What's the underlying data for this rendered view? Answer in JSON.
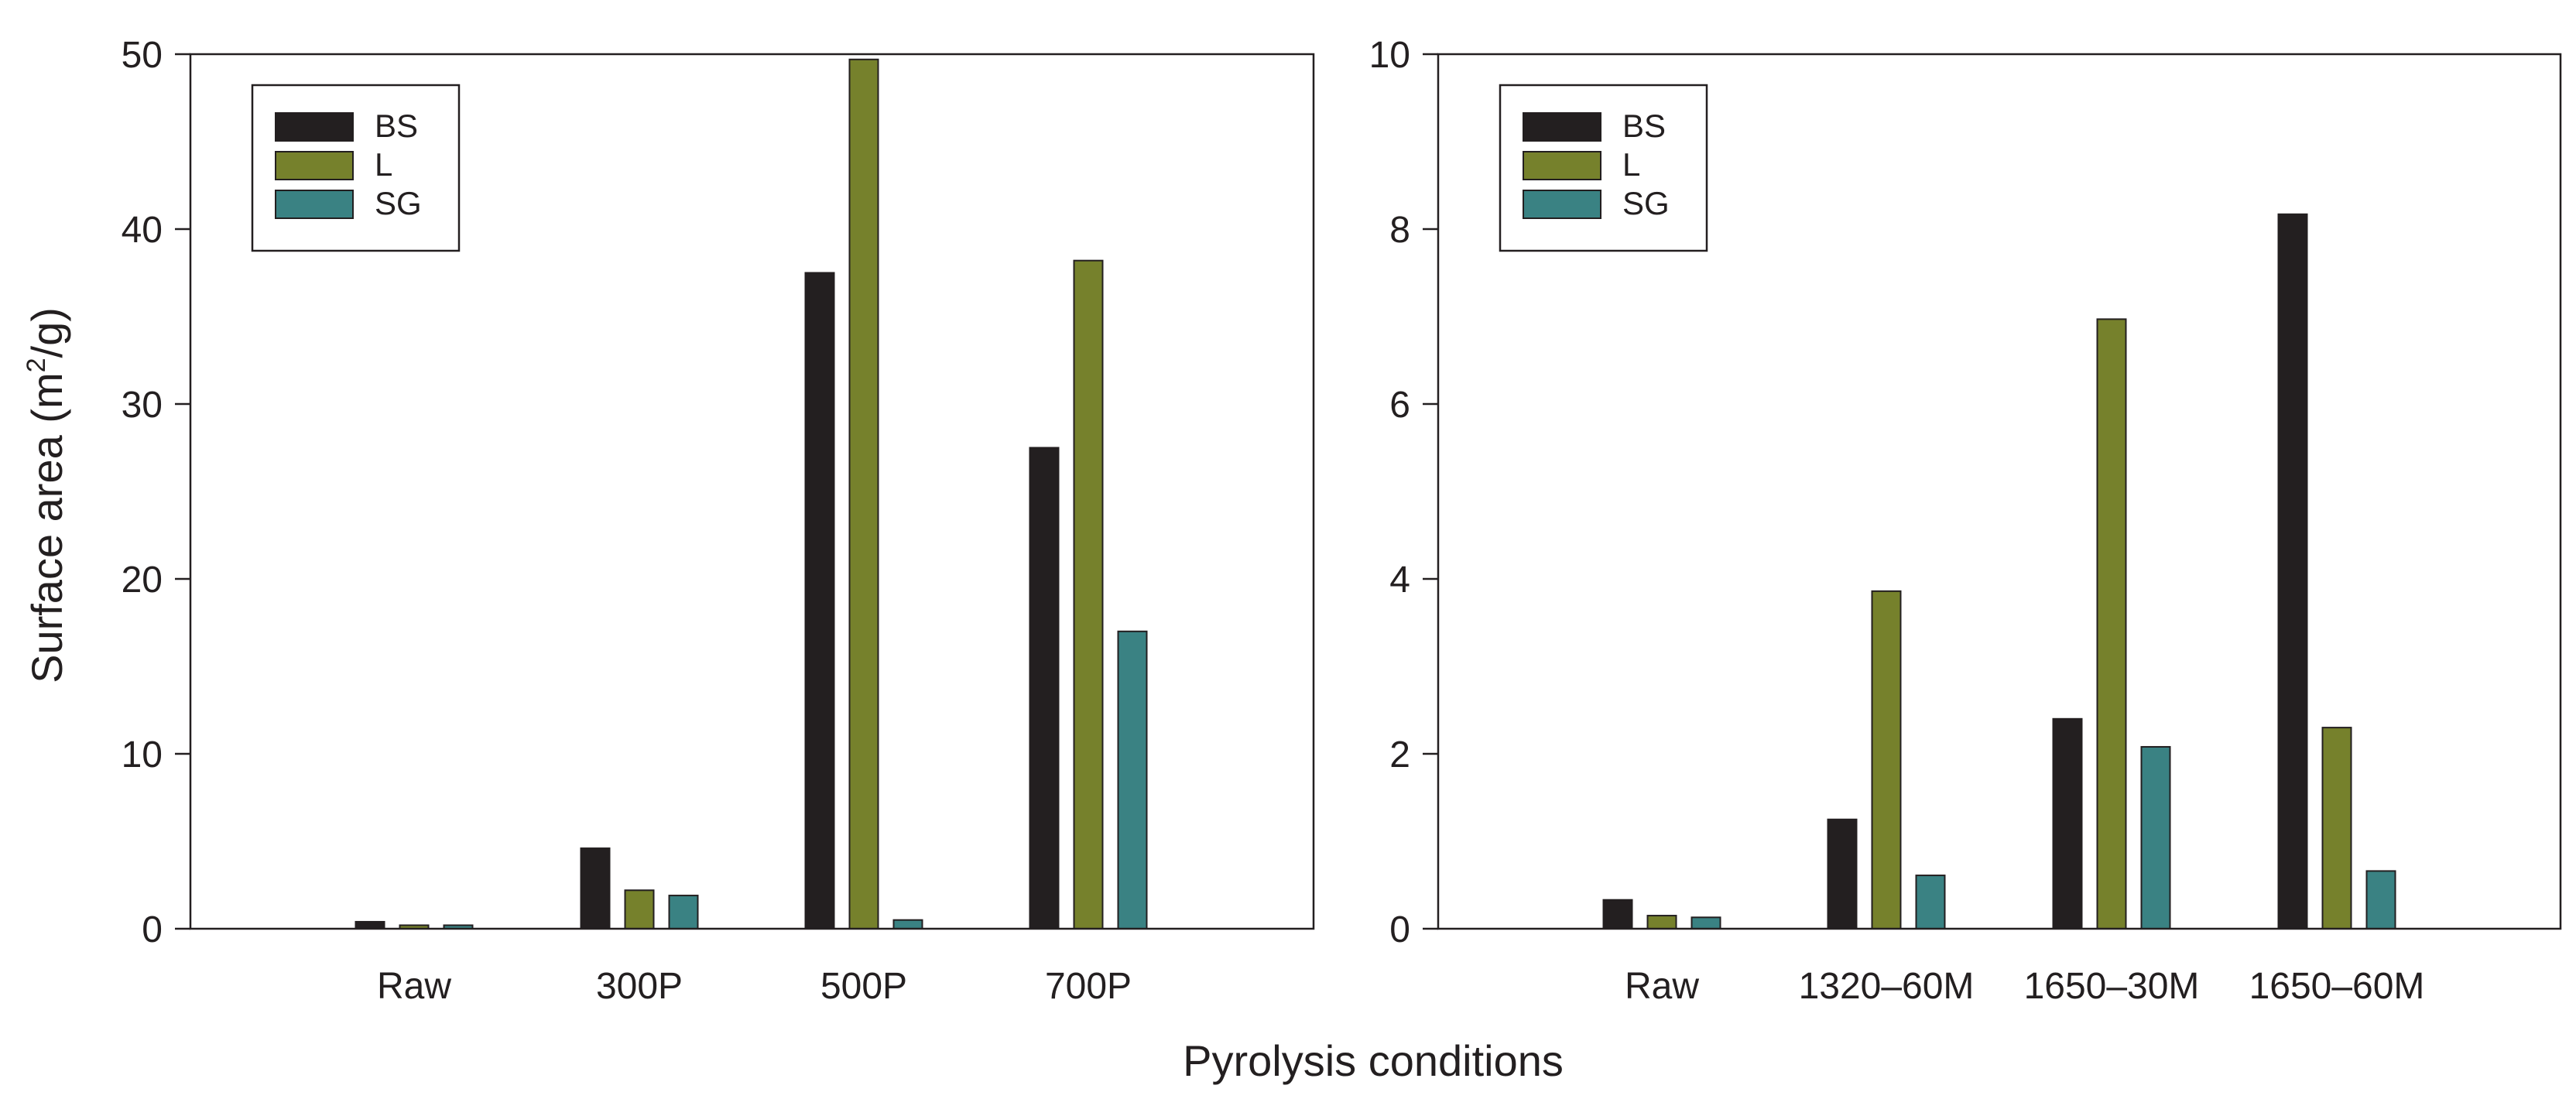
{
  "figure": {
    "ylabel_main": "Surface area (m",
    "ylabel_sup": "2",
    "ylabel_tail": "/g)",
    "xlabel": "Pyrolysis conditions"
  },
  "colors": {
    "BS": "#231f20",
    "L": "#76812c",
    "SG": "#3a8283",
    "axis": "#231f20"
  },
  "chart_data": [
    {
      "type": "bar",
      "panel": "left",
      "categories": [
        "Raw",
        "300P",
        "500P",
        "700P"
      ],
      "series": [
        {
          "name": "BS",
          "values": [
            0.4,
            4.6,
            37.5,
            27.5
          ]
        },
        {
          "name": "L",
          "values": [
            0.2,
            2.2,
            49.7,
            38.2
          ]
        },
        {
          "name": "SG",
          "values": [
            0.2,
            1.9,
            0.5,
            17.0
          ]
        }
      ],
      "yticks": [
        "0",
        "10",
        "20",
        "30",
        "40",
        "50"
      ],
      "ylim": [
        0,
        50
      ],
      "legend": {
        "position": "top-left",
        "labels": [
          "BS",
          "L",
          "SG"
        ]
      }
    },
    {
      "type": "bar",
      "panel": "right",
      "categories": [
        "Raw",
        "1320–60M",
        "1650–30M",
        "1650–60M"
      ],
      "series": [
        {
          "name": "BS",
          "values": [
            0.33,
            1.25,
            2.4,
            8.17
          ]
        },
        {
          "name": "L",
          "values": [
            0.15,
            3.86,
            6.97,
            2.3
          ]
        },
        {
          "name": "SG",
          "values": [
            0.13,
            0.61,
            2.08,
            0.66
          ]
        }
      ],
      "yticks": [
        "0",
        "2",
        "4",
        "6",
        "8",
        "10"
      ],
      "ylim": [
        0,
        10
      ],
      "legend": {
        "position": "top-left",
        "labels": [
          "BS",
          "L",
          "SG"
        ]
      }
    }
  ]
}
